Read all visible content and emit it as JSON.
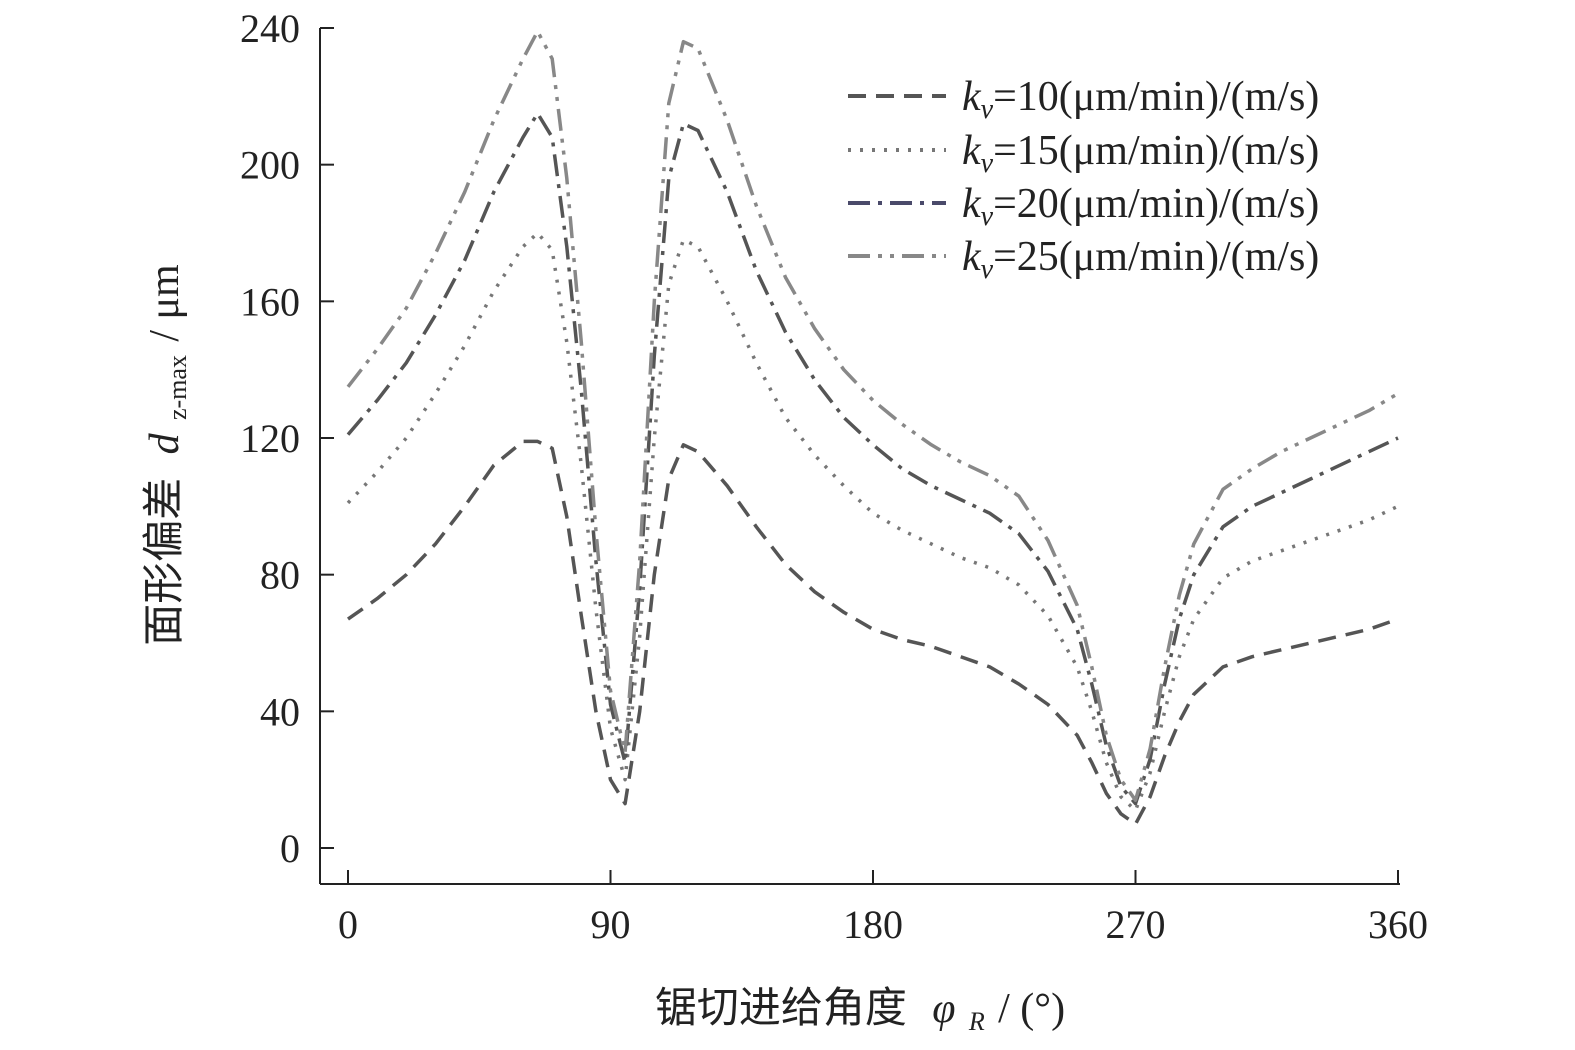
{
  "chart_data": {
    "type": "line",
    "xlabel_main": "锯切进给角度",
    "xlabel_symbol": "φ",
    "xlabel_symbol_sub": "R",
    "xlabel_unit": " / (°)",
    "ylabel_main": "面形偏差",
    "ylabel_symbol": "d",
    "ylabel_symbol_sub": "z-max",
    "ylabel_unit": " / μm",
    "xlim": [
      0,
      360
    ],
    "ylim": [
      0,
      240
    ],
    "xticks": [
      "0",
      "90",
      "180",
      "270",
      "360"
    ],
    "yticks": [
      "0",
      "40",
      "80",
      "120",
      "160",
      "200",
      "240"
    ],
    "legend_position": "top-right",
    "x": [
      0,
      10,
      20,
      30,
      40,
      50,
      60,
      65,
      70,
      75,
      80,
      85,
      90,
      95,
      100,
      105,
      110,
      115,
      120,
      130,
      140,
      150,
      160,
      170,
      180,
      190,
      200,
      210,
      220,
      230,
      240,
      250,
      255,
      260,
      265,
      270,
      275,
      280,
      285,
      290,
      300,
      310,
      320,
      330,
      340,
      350,
      360
    ],
    "series": [
      {
        "name": "k_v=10(μm/min)/(m/s)",
        "legend_symbol": "k",
        "legend_sub": "v",
        "legend_rest": "=10(μm/min)/(m/s)",
        "color": "#555555",
        "dash": "18,10",
        "values": [
          67,
          73,
          80,
          89,
          100,
          112,
          119,
          119,
          117,
          97,
          68,
          40,
          20,
          13,
          40,
          80,
          108,
          118,
          116,
          106,
          94,
          83,
          75,
          69,
          64,
          61,
          59,
          56,
          53,
          48,
          42,
          33,
          25,
          16,
          10,
          7,
          15,
          27,
          37,
          45,
          53,
          56,
          58,
          60,
          62,
          64,
          67
        ]
      },
      {
        "name": "k_v=15(μm/min)/(m/s)",
        "legend_symbol": "k",
        "legend_sub": "v",
        "legend_rest": "=15(μm/min)/(m/s)",
        "color": "#777777",
        "dash": "3,9",
        "values": [
          101,
          110,
          120,
          133,
          147,
          163,
          176,
          180,
          175,
          148,
          112,
          70,
          35,
          20,
          62,
          120,
          165,
          178,
          176,
          160,
          142,
          126,
          115,
          106,
          98,
          93,
          89,
          85,
          82,
          77,
          68,
          53,
          40,
          25,
          15,
          11,
          22,
          40,
          56,
          67,
          79,
          84,
          87,
          90,
          93,
          96,
          100
        ]
      },
      {
        "name": "k_v=20(μm/min)/(m/s)",
        "legend_symbol": "k",
        "legend_sub": "v",
        "legend_rest": "=20(μm/min)/(m/s)",
        "color": "#555555",
        "dash": "22,8,4,8",
        "values": [
          121,
          131,
          142,
          156,
          172,
          192,
          208,
          215,
          208,
          176,
          134,
          84,
          42,
          25,
          76,
          144,
          196,
          212,
          210,
          192,
          169,
          151,
          137,
          126,
          118,
          111,
          106,
          102,
          98,
          92,
          81,
          64,
          48,
          30,
          18,
          13,
          26,
          48,
          67,
          80,
          94,
          100,
          104,
          108,
          112,
          116,
          120
        ]
      },
      {
        "name": "k_v=25(μm/min)/(m/s)",
        "legend_symbol": "k",
        "legend_sub": "v",
        "legend_rest": "=25(μm/min)/(m/s)",
        "color": "#888888",
        "dash": "22,8,4,8,4,8",
        "values": [
          135,
          146,
          158,
          174,
          192,
          213,
          231,
          239,
          231,
          196,
          148,
          93,
          46,
          28,
          84,
          160,
          218,
          236,
          234,
          213,
          188,
          167,
          152,
          140,
          131,
          124,
          118,
          113,
          109,
          103,
          90,
          71,
          53,
          33,
          20,
          14,
          29,
          53,
          74,
          89,
          105,
          111,
          116,
          120,
          124,
          128,
          133
        ]
      }
    ]
  }
}
